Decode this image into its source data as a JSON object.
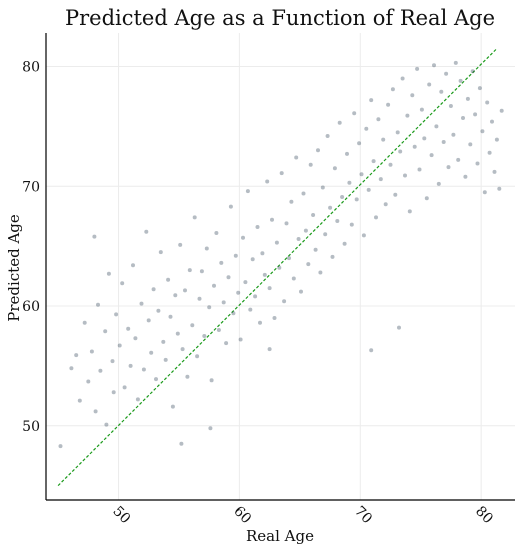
{
  "chart_data": {
    "type": "scatter",
    "title": "Predicted Age as a Function of Real Age",
    "xlabel": "Real Age",
    "ylabel": "Predicted Age",
    "xlim": [
      44,
      82.8
    ],
    "ylim": [
      43.8,
      82.8
    ],
    "xticks": [
      50,
      60,
      70,
      80
    ],
    "xtick_labels": [
      "50",
      "60",
      "70",
      "80"
    ],
    "yticks": [
      50,
      60,
      70,
      80
    ],
    "ytick_labels": [
      "50",
      "60",
      "70",
      "80"
    ],
    "grid": true,
    "legend": "none",
    "point_color": "#2b3f54",
    "point_alpha": 0.35,
    "reference_line": {
      "style": "dashed",
      "color": "#1a9a1a",
      "from": [
        45,
        45
      ],
      "to": [
        81.3,
        81.5
      ]
    },
    "series": [
      {
        "points": [
          [
            45.2,
            48.3
          ],
          [
            46.1,
            54.8
          ],
          [
            46.5,
            55.9
          ],
          [
            46.8,
            52.1
          ],
          [
            47.2,
            58.6
          ],
          [
            47.5,
            53.7
          ],
          [
            47.8,
            56.2
          ],
          [
            48.0,
            65.8
          ],
          [
            48.1,
            51.2
          ],
          [
            48.3,
            60.1
          ],
          [
            48.5,
            54.6
          ],
          [
            48.9,
            57.9
          ],
          [
            49.0,
            50.1
          ],
          [
            49.2,
            62.7
          ],
          [
            49.5,
            55.4
          ],
          [
            49.6,
            52.8
          ],
          [
            49.8,
            59.3
          ],
          [
            50.1,
            56.7
          ],
          [
            50.3,
            61.9
          ],
          [
            50.5,
            53.2
          ],
          [
            50.8,
            58.1
          ],
          [
            51.0,
            55.0
          ],
          [
            51.2,
            63.4
          ],
          [
            51.4,
            57.3
          ],
          [
            51.6,
            52.2
          ],
          [
            51.9,
            60.2
          ],
          [
            52.1,
            54.7
          ],
          [
            52.3,
            66.2
          ],
          [
            52.5,
            58.8
          ],
          [
            52.7,
            56.1
          ],
          [
            52.9,
            61.4
          ],
          [
            53.1,
            53.9
          ],
          [
            53.3,
            59.6
          ],
          [
            53.5,
            64.5
          ],
          [
            53.7,
            57.0
          ],
          [
            53.9,
            55.5
          ],
          [
            54.1,
            62.2
          ],
          [
            54.3,
            59.1
          ],
          [
            54.5,
            51.6
          ],
          [
            54.7,
            60.9
          ],
          [
            54.9,
            57.7
          ],
          [
            55.1,
            65.1
          ],
          [
            55.3,
            56.4
          ],
          [
            55.5,
            61.3
          ],
          [
            55.7,
            54.1
          ],
          [
            55.9,
            63.0
          ],
          [
            56.1,
            58.4
          ],
          [
            56.3,
            67.4
          ],
          [
            56.5,
            55.8
          ],
          [
            56.7,
            60.6
          ],
          [
            56.9,
            62.9
          ],
          [
            57.1,
            57.5
          ],
          [
            57.3,
            64.8
          ],
          [
            57.5,
            59.9
          ],
          [
            57.7,
            53.8
          ],
          [
            57.9,
            61.7
          ],
          [
            58.1,
            66.1
          ],
          [
            58.3,
            58.0
          ],
          [
            58.5,
            63.6
          ],
          [
            58.7,
            60.3
          ],
          [
            58.9,
            56.9
          ],
          [
            59.1,
            62.4
          ],
          [
            59.3,
            68.3
          ],
          [
            59.5,
            59.4
          ],
          [
            59.7,
            64.2
          ],
          [
            59.9,
            61.1
          ],
          [
            60.1,
            57.2
          ],
          [
            60.3,
            65.7
          ],
          [
            60.5,
            62.0
          ],
          [
            60.7,
            69.6
          ],
          [
            60.9,
            59.7
          ],
          [
            61.1,
            63.9
          ],
          [
            61.3,
            60.8
          ],
          [
            61.5,
            66.6
          ],
          [
            61.7,
            58.6
          ],
          [
            61.9,
            64.4
          ],
          [
            62.1,
            62.6
          ],
          [
            62.3,
            70.4
          ],
          [
            62.5,
            61.5
          ],
          [
            62.7,
            67.2
          ],
          [
            62.9,
            59.0
          ],
          [
            63.1,
            65.3
          ],
          [
            63.3,
            63.2
          ],
          [
            63.5,
            71.1
          ],
          [
            63.7,
            60.4
          ],
          [
            63.9,
            66.9
          ],
          [
            64.1,
            64.0
          ],
          [
            64.3,
            68.7
          ],
          [
            64.5,
            62.3
          ],
          [
            64.7,
            72.4
          ],
          [
            64.9,
            65.6
          ],
          [
            65.1,
            61.2
          ],
          [
            65.3,
            69.4
          ],
          [
            65.5,
            66.3
          ],
          [
            65.7,
            63.5
          ],
          [
            65.9,
            71.8
          ],
          [
            66.1,
            67.6
          ],
          [
            66.3,
            64.7
          ],
          [
            66.5,
            73.0
          ],
          [
            66.7,
            62.8
          ],
          [
            66.9,
            69.9
          ],
          [
            67.1,
            66.0
          ],
          [
            67.3,
            74.2
          ],
          [
            67.5,
            68.2
          ],
          [
            67.7,
            64.1
          ],
          [
            67.9,
            71.5
          ],
          [
            68.1,
            67.1
          ],
          [
            68.3,
            75.3
          ],
          [
            68.5,
            69.1
          ],
          [
            68.7,
            65.2
          ],
          [
            68.9,
            72.7
          ],
          [
            69.1,
            70.3
          ],
          [
            69.3,
            66.8
          ],
          [
            69.5,
            76.1
          ],
          [
            69.7,
            68.9
          ],
          [
            69.9,
            73.6
          ],
          [
            70.1,
            71.0
          ],
          [
            70.3,
            65.9
          ],
          [
            70.5,
            74.8
          ],
          [
            70.7,
            69.7
          ],
          [
            70.9,
            77.2
          ],
          [
            71.1,
            72.1
          ],
          [
            71.3,
            67.4
          ],
          [
            71.5,
            75.6
          ],
          [
            71.7,
            70.6
          ],
          [
            71.9,
            73.9
          ],
          [
            72.1,
            68.5
          ],
          [
            72.3,
            76.8
          ],
          [
            72.5,
            71.8
          ],
          [
            72.7,
            78.1
          ],
          [
            72.9,
            69.3
          ],
          [
            73.1,
            74.5
          ],
          [
            73.3,
            72.9
          ],
          [
            73.5,
            79.0
          ],
          [
            73.7,
            70.9
          ],
          [
            73.9,
            75.9
          ],
          [
            74.1,
            67.9
          ],
          [
            74.3,
            77.6
          ],
          [
            74.5,
            73.3
          ],
          [
            74.7,
            79.8
          ],
          [
            74.9,
            71.4
          ],
          [
            75.1,
            76.4
          ],
          [
            75.3,
            74.0
          ],
          [
            75.5,
            69.0
          ],
          [
            75.7,
            78.5
          ],
          [
            75.9,
            72.6
          ],
          [
            76.1,
            80.1
          ],
          [
            76.3,
            75.0
          ],
          [
            76.5,
            70.2
          ],
          [
            76.7,
            77.9
          ],
          [
            76.9,
            73.7
          ],
          [
            77.1,
            79.4
          ],
          [
            77.3,
            71.6
          ],
          [
            77.5,
            76.7
          ],
          [
            77.7,
            74.3
          ],
          [
            77.9,
            80.3
          ],
          [
            78.1,
            72.2
          ],
          [
            78.3,
            78.8
          ],
          [
            78.5,
            75.7
          ],
          [
            78.7,
            70.8
          ],
          [
            78.9,
            77.3
          ],
          [
            79.1,
            73.5
          ],
          [
            79.3,
            79.6
          ],
          [
            79.5,
            76.0
          ],
          [
            79.7,
            71.9
          ],
          [
            79.9,
            78.2
          ],
          [
            80.1,
            74.6
          ],
          [
            80.3,
            69.5
          ],
          [
            80.5,
            77.0
          ],
          [
            80.7,
            72.8
          ],
          [
            80.9,
            75.4
          ],
          [
            81.1,
            71.2
          ],
          [
            81.3,
            73.9
          ],
          [
            81.5,
            69.8
          ],
          [
            81.7,
            76.3
          ],
          [
            57.6,
            49.8
          ],
          [
            55.2,
            48.5
          ],
          [
            62.5,
            56.4
          ],
          [
            70.9,
            56.3
          ],
          [
            73.2,
            58.2
          ]
        ]
      }
    ]
  }
}
